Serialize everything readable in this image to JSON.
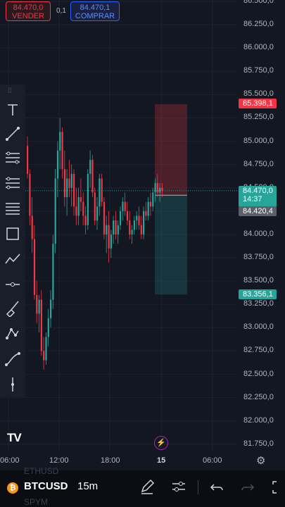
{
  "order_panel": {
    "sell_price": "84.470,0",
    "sell_label": "VENDER",
    "spread": "0,1",
    "buy_price": "84.470,1",
    "buy_label": "COMPRAR"
  },
  "price_axis": {
    "labels": [
      "86.500,0",
      "86.250,0",
      "86.000,0",
      "85.750,0",
      "85.500,0",
      "85.250,0",
      "85.000,0",
      "84.750,0",
      "84.500,0",
      "84.250,0",
      "84.000,0",
      "83.750,0",
      "83.500,0",
      "83.250,0",
      "83.000,0",
      "82.750,0",
      "82.500,0",
      "82.250,0",
      "82.000,0",
      "81.750,0"
    ],
    "stop_tag": "85.398,1",
    "last_price_tag": "84.470,0",
    "countdown": "14:37",
    "entry_tag": "84.420,4",
    "target_tag": "83.356,1"
  },
  "time_axis": {
    "labels": [
      "06:00",
      "12:00",
      "18:00",
      "15",
      "06:00"
    ]
  },
  "bottom_bar": {
    "symbol": "BTCUSD",
    "interval": "15m",
    "ghost_symbol_1": "ETHUSD",
    "ghost_symbol_2": "SPYM"
  },
  "logo_text": "TV",
  "colors": {
    "up": "#26a69a",
    "down": "#f23645",
    "background": "#131722",
    "accent": "#2962ff"
  },
  "icons": [
    "text-icon",
    "trend-line-icon",
    "fib-icon",
    "pitchfork-icon",
    "horizontal-lines-icon",
    "rectangle-icon",
    "path-icon",
    "ruler-icon",
    "brush-icon",
    "pattern-icon",
    "curve-icon",
    "measure-icon",
    "pencil-icon",
    "settings-sliders-icon",
    "undo-icon",
    "redo-icon",
    "fullscreen-icon",
    "lightning-icon",
    "gear-icon"
  ],
  "chart_data": {
    "type": "candlestick",
    "symbol": "BTCUSD",
    "interval": "15m",
    "ylim": [
      81750,
      86500
    ],
    "candles": [
      [
        84950,
        85050,
        84600,
        84650
      ],
      [
        84650,
        84700,
        84100,
        84200
      ],
      [
        84200,
        84400,
        83800,
        83950
      ],
      [
        83950,
        84100,
        83300,
        83350
      ],
      [
        83350,
        83500,
        83050,
        83150
      ],
      [
        83150,
        83350,
        82950,
        83300
      ],
      [
        83300,
        83400,
        82700,
        82750
      ],
      [
        82750,
        82900,
        82550,
        82650
      ],
      [
        82650,
        82950,
        82600,
        82900
      ],
      [
        82900,
        83200,
        82800,
        83100
      ],
      [
        83100,
        83400,
        83000,
        83300
      ],
      [
        83300,
        84000,
        83200,
        83900
      ],
      [
        83900,
        84700,
        83800,
        84600
      ],
      [
        84600,
        85000,
        84400,
        84900
      ],
      [
        84900,
        85250,
        84700,
        85100
      ],
      [
        85100,
        85150,
        84600,
        84700
      ],
      [
        84700,
        84900,
        84300,
        84400
      ],
      [
        84400,
        84700,
        84200,
        84600
      ],
      [
        84600,
        84800,
        84400,
        84500
      ],
      [
        84500,
        84750,
        84300,
        84650
      ],
      [
        84650,
        84700,
        84200,
        84300
      ],
      [
        84300,
        84500,
        84100,
        84200
      ],
      [
        84200,
        84500,
        84100,
        84400
      ],
      [
        84400,
        84600,
        84250,
        84350
      ],
      [
        84350,
        84450,
        84100,
        84200
      ],
      [
        84200,
        84300,
        84000,
        84100
      ],
      [
        84100,
        84700,
        84050,
        84650
      ],
      [
        84650,
        84900,
        84500,
        84800
      ],
      [
        84800,
        84850,
        84400,
        84450
      ],
      [
        84450,
        84500,
        84100,
        84150
      ],
      [
        84150,
        84400,
        84050,
        84300
      ],
      [
        84300,
        84650,
        84200,
        84600
      ],
      [
        84600,
        84650,
        84300,
        84350
      ],
      [
        84350,
        84400,
        83950,
        84000
      ],
      [
        84000,
        84200,
        83800,
        84100
      ],
      [
        84100,
        84250,
        83700,
        83850
      ],
      [
        83850,
        84050,
        83750,
        84000
      ],
      [
        84000,
        84200,
        83900,
        84150
      ],
      [
        84150,
        84250,
        83950,
        84000
      ],
      [
        84000,
        84150,
        83900,
        84100
      ],
      [
        84100,
        84300,
        84050,
        84250
      ],
      [
        84250,
        84400,
        84150,
        84350
      ],
      [
        84350,
        84450,
        84200,
        84250
      ],
      [
        84250,
        84350,
        84100,
        84150
      ],
      [
        84150,
        84250,
        83950,
        84000
      ],
      [
        84000,
        84100,
        83900,
        84050
      ],
      [
        84050,
        84200,
        84000,
        84150
      ],
      [
        84150,
        84250,
        84050,
        84200
      ],
      [
        84200,
        84300,
        84050,
        84100
      ],
      [
        84100,
        84200,
        83950,
        84000
      ],
      [
        84000,
        84300,
        83950,
        84250
      ],
      [
        84250,
        84350,
        84150,
        84200
      ],
      [
        84200,
        84400,
        84150,
        84350
      ],
      [
        84350,
        84450,
        84200,
        84300
      ],
      [
        84300,
        84500,
        84250,
        84450
      ],
      [
        84450,
        84600,
        84350,
        84550
      ],
      [
        84550,
        84650,
        84400,
        84450
      ],
      [
        84450,
        84550,
        84350,
        84500
      ],
      [
        84500,
        84550,
        84400,
        84470
      ]
    ],
    "position": {
      "stop": 85398.1,
      "entry": 84420.4,
      "target": 83356.1
    }
  }
}
